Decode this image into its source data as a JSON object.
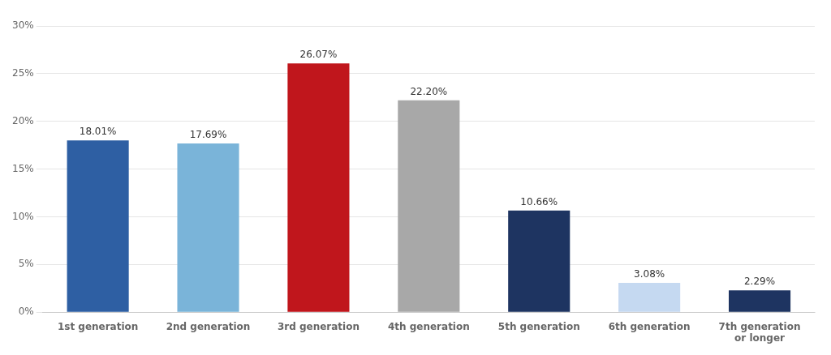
{
  "chart_data": {
    "type": "bar",
    "categories": [
      "1st generation",
      "2nd generation",
      "3rd generation",
      "4th generation",
      "5th generation",
      "6th generation",
      "7th generation\nor longer"
    ],
    "values": [
      18.01,
      17.69,
      26.07,
      22.2,
      10.66,
      3.08,
      2.29
    ],
    "value_labels": [
      "18.01%",
      "17.69%",
      "26.07%",
      "22.20%",
      "10.66%",
      "3.08%",
      "2.29%"
    ],
    "colors": [
      "#2e5fa3",
      "#7ab4d9",
      "#c0161c",
      "#a8a8a8",
      "#1e3461",
      "#c5d9f1",
      "#1e3461"
    ],
    "ylim": [
      0,
      30
    ],
    "yticks": [
      {
        "value": 0,
        "label": "0%"
      },
      {
        "value": 5,
        "label": "5%"
      },
      {
        "value": 10,
        "label": "10%"
      },
      {
        "value": 15,
        "label": "15%"
      },
      {
        "value": 20,
        "label": "20%"
      },
      {
        "value": 25,
        "label": "25%"
      },
      {
        "value": 30,
        "label": "30%"
      }
    ],
    "grid": true,
    "data_labels": true
  }
}
